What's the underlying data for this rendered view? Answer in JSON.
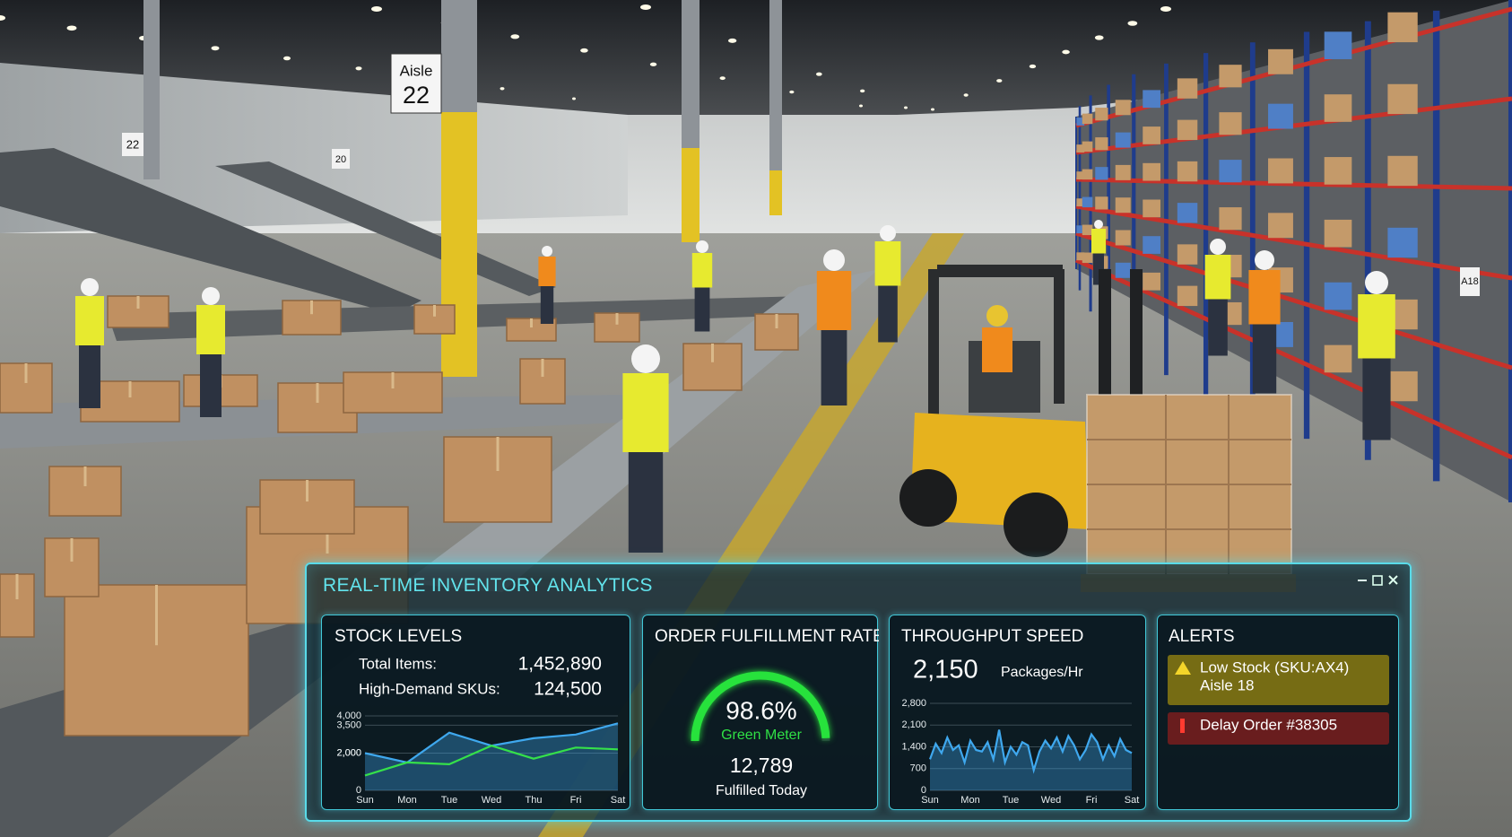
{
  "scene": {
    "sign_label": "Aisle",
    "sign_number": "22",
    "small_signs": [
      "22",
      "20",
      "A18"
    ]
  },
  "panel": {
    "title": "REAL-TIME INVENTORY ANALYTICS",
    "stock": {
      "title": "STOCK LEVELS",
      "rows": [
        {
          "label": "Total Items:",
          "value": "1,452,890"
        },
        {
          "label": "High-Demand SKUs:",
          "value": "124,500"
        }
      ]
    },
    "fulfillment": {
      "title": "ORDER FULFILLMENT RATE",
      "meter_label": "Green Meter",
      "count": "12,789",
      "count_label": "Fulfilled Today"
    },
    "throughput": {
      "title": "THROUGHPUT SPEED",
      "value": "2,150",
      "unit": "Packages/Hr"
    },
    "alerts": {
      "title": "ALERTS",
      "items": [
        {
          "lines": [
            "Low Stock (SKU:AX4)",
            "Aisle 18"
          ],
          "color": "#8a7a12"
        },
        {
          "lines": [
            "Delay Order #38305"
          ],
          "color": "#7a1d1d"
        }
      ]
    }
  },
  "chart_data": [
    {
      "type": "line",
      "categories": [
        "Sun",
        "Mon",
        "Tue",
        "Wed",
        "Thu",
        "Fri",
        "Sat"
      ],
      "series": [
        {
          "color": "#3fa8ee",
          "area": true,
          "values": [
            2000,
            1500,
            3100,
            2400,
            2800,
            3000,
            3600
          ]
        },
        {
          "color": "#35e04a",
          "area": false,
          "values": [
            800,
            1500,
            1400,
            2400,
            1700,
            2300,
            2200
          ]
        }
      ],
      "ylim": [
        0,
        4000
      ],
      "yticks": [
        {
          "value": 4000,
          "label": "4,000"
        },
        {
          "value": 3500,
          "label": "3,500"
        },
        {
          "value": 2000,
          "label": "2,000"
        },
        {
          "value": 2000,
          "label": "2,000"
        },
        0
      ],
      "grid": true
    },
    {
      "type": "gauge",
      "value": 98.6,
      "value_label": "98.6%",
      "ylim": [
        0,
        100
      ],
      "color": "#27e23c"
    },
    {
      "type": "line",
      "categories": [
        "Sun",
        null,
        null,
        null,
        null,
        null,
        null,
        "Mon",
        null,
        null,
        null,
        null,
        null,
        null,
        "Tue",
        null,
        null,
        null,
        null,
        null,
        null,
        "Wed",
        null,
        null,
        null,
        null,
        null,
        null,
        "Fri",
        null,
        null,
        null,
        null,
        null,
        null,
        "Sat"
      ],
      "series": [
        {
          "color": "#3fa8ee",
          "area": true,
          "values": [
            1000,
            1500,
            1200,
            1700,
            1300,
            1450,
            900,
            1600,
            1300,
            1250,
            1550,
            1000,
            1950,
            900,
            1400,
            1150,
            1550,
            1450,
            650,
            1250,
            1600,
            1350,
            1700,
            1250,
            1750,
            1450,
            1000,
            1300,
            1800,
            1550,
            1000,
            1450,
            1100,
            1650,
            1300,
            1200
          ]
        }
      ],
      "ylim": [
        0,
        2800
      ],
      "yticks": [
        {
          "value": 2800,
          "label": "2,800"
        },
        {
          "value": 2100,
          "label": "2,100"
        },
        {
          "value": 1400,
          "label": "1,400"
        },
        700,
        0
      ],
      "grid": true
    }
  ]
}
